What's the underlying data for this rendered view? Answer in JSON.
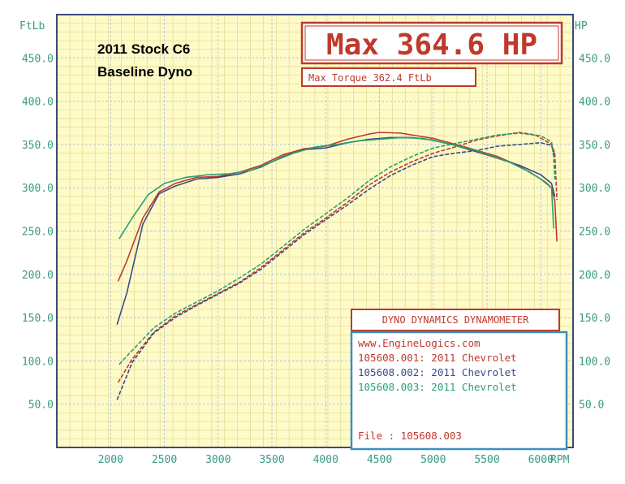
{
  "chart_data": {
    "type": "line",
    "caption_lines": [
      "2011 Stock C6",
      "Baseline Dyno"
    ],
    "max_hp_text": "Max 364.6 HP",
    "max_torque_text": "Max Torque 362.4 FtLb",
    "xunit": "RPM",
    "left_unit": "FtLb",
    "right_unit": "HP",
    "xlim": [
      1500,
      6300
    ],
    "ylim": [
      0,
      500
    ],
    "x_ticks": [
      "2000",
      "2500",
      "3000",
      "3500",
      "4000",
      "4500",
      "5000",
      "5500",
      "6000"
    ],
    "left_ticks": [
      "50.0",
      "100.0",
      "150.0",
      "200.0",
      "250.0",
      "300.0",
      "350.0",
      "400.0",
      "450.0"
    ],
    "right_ticks": [
      "50.0",
      "100.0",
      "150.0",
      "200.0",
      "250.0",
      "300.0",
      "350.0",
      "400.0",
      "450.0"
    ],
    "grid": true,
    "legend": {
      "title": "DYNO DYNAMICS DYNAMOMETER",
      "website": "www.EngineLogics.com",
      "runs": [
        "105608.001: 2011 Chevrolet",
        "105608.002: 2011 Chevrolet",
        "105608.003: 2011 Chevrolet"
      ],
      "file_line": "File      : 105608.003"
    },
    "series": [
      {
        "color": "#c0392b",
        "torque": [
          [
            2070,
            192
          ],
          [
            2150,
            215
          ],
          [
            2300,
            265
          ],
          [
            2450,
            295
          ],
          [
            2600,
            305
          ],
          [
            2800,
            312
          ],
          [
            3000,
            313
          ],
          [
            3200,
            318
          ],
          [
            3400,
            326
          ],
          [
            3600,
            338
          ],
          [
            3800,
            345
          ],
          [
            4000,
            348
          ],
          [
            4200,
            356
          ],
          [
            4400,
            362
          ],
          [
            4500,
            364
          ],
          [
            4700,
            363
          ],
          [
            5000,
            357
          ],
          [
            5300,
            347
          ],
          [
            5600,
            336
          ],
          [
            5800,
            325
          ],
          [
            6000,
            310
          ],
          [
            6100,
            300
          ],
          [
            6130,
            285
          ],
          [
            6150,
            238
          ]
        ],
        "hp": [
          [
            2070,
            75
          ],
          [
            2200,
            102
          ],
          [
            2400,
            133
          ],
          [
            2600,
            152
          ],
          [
            2800,
            165
          ],
          [
            3000,
            178
          ],
          [
            3200,
            191
          ],
          [
            3400,
            208
          ],
          [
            3600,
            228
          ],
          [
            3800,
            248
          ],
          [
            4000,
            265
          ],
          [
            4200,
            283
          ],
          [
            4400,
            303
          ],
          [
            4600,
            318
          ],
          [
            4800,
            330
          ],
          [
            5000,
            340
          ],
          [
            5200,
            347
          ],
          [
            5400,
            355
          ],
          [
            5600,
            360
          ],
          [
            5800,
            364
          ],
          [
            5950,
            361
          ],
          [
            6100,
            350
          ],
          [
            6130,
            340
          ],
          [
            6150,
            286
          ]
        ]
      },
      {
        "color": "#3c4a8a",
        "torque": [
          [
            2060,
            142
          ],
          [
            2150,
            178
          ],
          [
            2300,
            258
          ],
          [
            2450,
            293
          ],
          [
            2600,
            302
          ],
          [
            2800,
            310
          ],
          [
            3000,
            312
          ],
          [
            3200,
            316
          ],
          [
            3400,
            324
          ],
          [
            3600,
            336
          ],
          [
            3800,
            344
          ],
          [
            4000,
            346
          ],
          [
            4200,
            352
          ],
          [
            4400,
            356
          ],
          [
            4600,
            358
          ],
          [
            4800,
            358
          ],
          [
            5000,
            355
          ],
          [
            5200,
            349
          ],
          [
            5500,
            338
          ],
          [
            5800,
            326
          ],
          [
            6000,
            315
          ],
          [
            6100,
            305
          ],
          [
            6130,
            290
          ]
        ],
        "hp": [
          [
            2060,
            55
          ],
          [
            2200,
            98
          ],
          [
            2400,
            132
          ],
          [
            2600,
            150
          ],
          [
            2800,
            164
          ],
          [
            3000,
            177
          ],
          [
            3200,
            190
          ],
          [
            3400,
            206
          ],
          [
            3600,
            226
          ],
          [
            3800,
            246
          ],
          [
            4000,
            263
          ],
          [
            4200,
            280
          ],
          [
            4400,
            298
          ],
          [
            4600,
            314
          ],
          [
            4800,
            326
          ],
          [
            5000,
            336
          ],
          [
            5200,
            340
          ],
          [
            5400,
            343
          ],
          [
            5600,
            348
          ],
          [
            5800,
            350
          ],
          [
            6000,
            352
          ],
          [
            6100,
            349
          ],
          [
            6130,
            337
          ]
        ]
      },
      {
        "color": "#2aa072",
        "torque": [
          [
            2080,
            241
          ],
          [
            2200,
            265
          ],
          [
            2350,
            292
          ],
          [
            2500,
            305
          ],
          [
            2700,
            312
          ],
          [
            2900,
            315
          ],
          [
            3100,
            316
          ],
          [
            3300,
            320
          ],
          [
            3500,
            330
          ],
          [
            3700,
            340
          ],
          [
            3900,
            347
          ],
          [
            4100,
            350
          ],
          [
            4300,
            354
          ],
          [
            4500,
            356
          ],
          [
            4700,
            358
          ],
          [
            4900,
            357
          ],
          [
            5100,
            352
          ],
          [
            5400,
            343
          ],
          [
            5700,
            330
          ],
          [
            5900,
            318
          ],
          [
            6050,
            306
          ],
          [
            6100,
            300
          ],
          [
            6120,
            253
          ]
        ],
        "hp": [
          [
            2080,
            96
          ],
          [
            2200,
            112
          ],
          [
            2400,
            138
          ],
          [
            2600,
            155
          ],
          [
            2800,
            168
          ],
          [
            3000,
            181
          ],
          [
            3200,
            196
          ],
          [
            3400,
            212
          ],
          [
            3600,
            232
          ],
          [
            3800,
            252
          ],
          [
            4000,
            270
          ],
          [
            4200,
            288
          ],
          [
            4400,
            308
          ],
          [
            4600,
            324
          ],
          [
            4800,
            336
          ],
          [
            5000,
            346
          ],
          [
            5200,
            351
          ],
          [
            5400,
            356
          ],
          [
            5600,
            361
          ],
          [
            5800,
            363
          ],
          [
            6000,
            360
          ],
          [
            6100,
            353
          ],
          [
            6120,
            335
          ],
          [
            6130,
            310
          ]
        ]
      }
    ]
  }
}
